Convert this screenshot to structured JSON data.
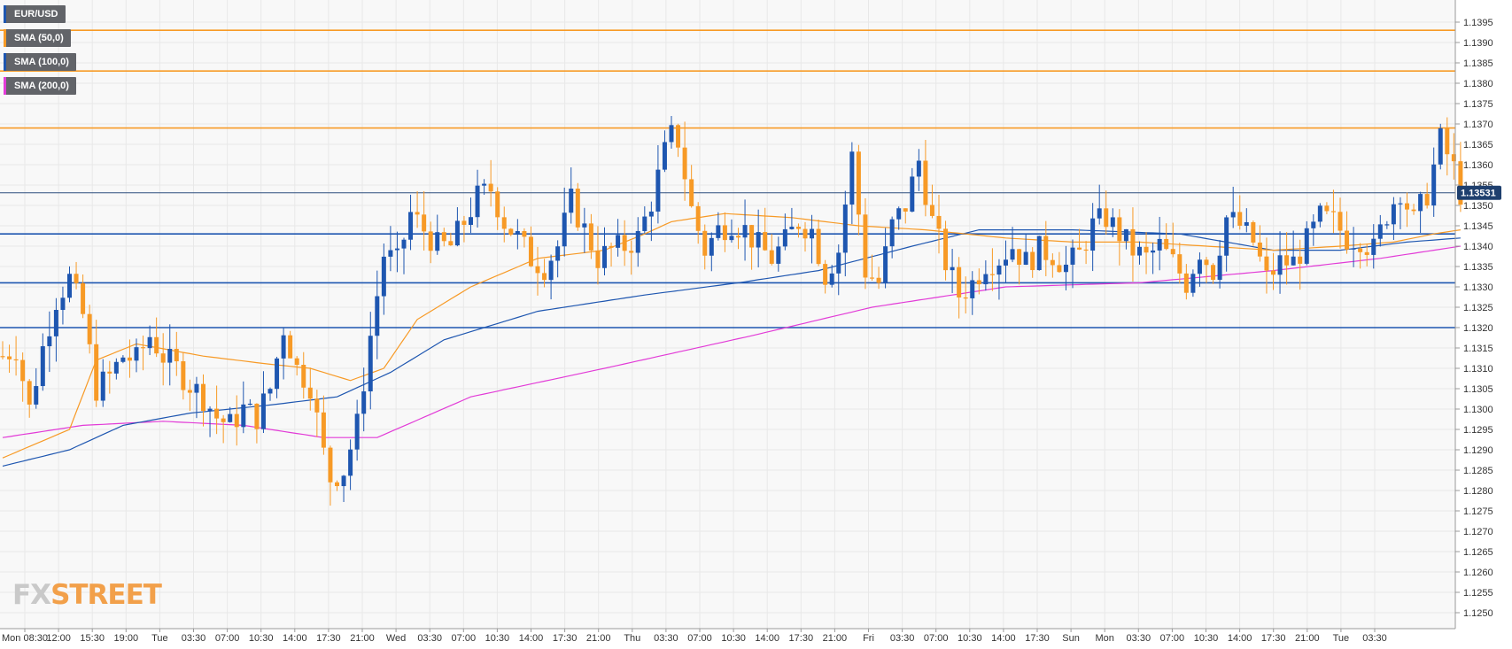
{
  "legend": {
    "instrument": "EUR/USD",
    "sma50": "SMA (50,0)",
    "sma100": "SMA (100,0)",
    "sma200": "SMA (200,0)"
  },
  "logo": {
    "fx": "FX",
    "street": "STREET"
  },
  "colors": {
    "bull": "#1e56b0",
    "bear": "#f79a26",
    "sma50": "#f79a26",
    "sma100": "#1e56b0",
    "sma200": "#e23bd7",
    "resistance": "#f79a26",
    "support": "#1e56b0",
    "price_line": "#2e4e7e",
    "price_badge": "#1e3f6e",
    "grid": "#e8e8e8",
    "plot_bg": "#f8f8f8"
  },
  "chart_data": {
    "type": "candlestick",
    "instrument": "EUR/USD",
    "timeframe_note": "15-minute candles",
    "y_range": [
      1.1247,
      1.14
    ],
    "y_ticks": [
      "1.1250",
      "1.1255",
      "1.1260",
      "1.1265",
      "1.1270",
      "1.1275",
      "1.1280",
      "1.1285",
      "1.1290",
      "1.1295",
      "1.1300",
      "1.1305",
      "1.1310",
      "1.1315",
      "1.1320",
      "1.1325",
      "1.1330",
      "1.1335",
      "1.1340",
      "1.1345",
      "1.1350",
      "1.1355",
      "1.1360",
      "1.1365",
      "1.1370",
      "1.1375",
      "1.1380",
      "1.1385",
      "1.1390",
      "1.1395"
    ],
    "x_tick_labels": [
      "Mon 08:30",
      "12:00",
      "15:30",
      "19:00",
      "Tue",
      "03:30",
      "07:00",
      "10:30",
      "14:00",
      "17:30",
      "21:00",
      "Wed",
      "03:30",
      "07:00",
      "10:30",
      "14:00",
      "17:30",
      "21:00",
      "Thu",
      "03:30",
      "07:00",
      "10:30",
      "14:00",
      "17:30",
      "21:00",
      "Fri",
      "03:30",
      "07:00",
      "10:30",
      "14:00",
      "17:30",
      "Sun",
      "Mon",
      "03:30",
      "07:00",
      "10:30",
      "14:00",
      "17:30",
      "21:00",
      "Tue",
      "03:30"
    ],
    "current_price": "1.13531",
    "horizontal_levels": {
      "resistance": [
        1.1369,
        1.1383,
        1.1393
      ],
      "support": [
        1.132,
        1.1331,
        1.1343
      ]
    },
    "close_path": [
      [
        0,
        1.1313
      ],
      [
        2,
        1.1315
      ],
      [
        4,
        1.13
      ],
      [
        6,
        1.1315
      ],
      [
        8,
        1.1327
      ],
      [
        10,
        1.1332
      ],
      [
        12,
        1.1323
      ],
      [
        14,
        1.1305
      ],
      [
        16,
        1.1308
      ],
      [
        18,
        1.1313
      ],
      [
        20,
        1.1312
      ],
      [
        22,
        1.1318
      ],
      [
        24,
        1.1313
      ],
      [
        26,
        1.131
      ],
      [
        28,
        1.1306
      ],
      [
        30,
        1.1303
      ],
      [
        32,
        1.1298
      ],
      [
        34,
        1.1296
      ],
      [
        36,
        1.13
      ],
      [
        38,
        1.1298
      ],
      [
        40,
        1.1305
      ],
      [
        42,
        1.132
      ],
      [
        44,
        1.131
      ],
      [
        46,
        1.1306
      ],
      [
        48,
        1.1289
      ],
      [
        49,
        1.1283
      ],
      [
        51,
        1.1285
      ],
      [
        53,
        1.1296
      ],
      [
        55,
        1.1318
      ],
      [
        57,
        1.1338
      ],
      [
        59,
        1.1336
      ],
      [
        61,
        1.1348
      ],
      [
        63,
        1.1344
      ],
      [
        65,
        1.134
      ],
      [
        67,
        1.134
      ],
      [
        69,
        1.1346
      ],
      [
        71,
        1.1352
      ],
      [
        73,
        1.1354
      ],
      [
        75,
        1.1346
      ],
      [
        77,
        1.1342
      ],
      [
        79,
        1.1337
      ],
      [
        81,
        1.1335
      ],
      [
        83,
        1.134
      ],
      [
        85,
        1.1351
      ],
      [
        87,
        1.1344
      ],
      [
        89,
        1.1337
      ],
      [
        91,
        1.1339
      ],
      [
        93,
        1.134
      ],
      [
        95,
        1.1342
      ],
      [
        97,
        1.1351
      ],
      [
        99,
        1.1363
      ],
      [
        100,
        1.1367
      ],
      [
        101,
        1.1366
      ],
      [
        103,
        1.1349
      ],
      [
        105,
        1.1339
      ],
      [
        107,
        1.1344
      ],
      [
        109,
        1.1346
      ],
      [
        111,
        1.1344
      ],
      [
        113,
        1.134
      ],
      [
        115,
        1.1337
      ],
      [
        117,
        1.1341
      ],
      [
        119,
        1.1346
      ],
      [
        121,
        1.1344
      ],
      [
        123,
        1.1333
      ],
      [
        125,
        1.1339
      ],
      [
        127,
        1.1362
      ],
      [
        129,
        1.1334
      ],
      [
        131,
        1.1331
      ],
      [
        133,
        1.1345
      ],
      [
        135,
        1.135
      ],
      [
        137,
        1.1361
      ],
      [
        139,
        1.1346
      ],
      [
        141,
        1.1336
      ],
      [
        143,
        1.1328
      ],
      [
        145,
        1.1331
      ],
      [
        147,
        1.1336
      ],
      [
        149,
        1.1337
      ],
      [
        151,
        1.134
      ],
      [
        153,
        1.1336
      ],
      [
        155,
        1.1339
      ],
      [
        157,
        1.1338
      ],
      [
        159,
        1.1335
      ],
      [
        161,
        1.1338
      ],
      [
        163,
        1.1345
      ],
      [
        165,
        1.1347
      ],
      [
        167,
        1.1343
      ],
      [
        169,
        1.1339
      ],
      [
        171,
        1.1337
      ],
      [
        173,
        1.134
      ],
      [
        175,
        1.1336
      ],
      [
        177,
        1.1331
      ],
      [
        179,
        1.1339
      ],
      [
        181,
        1.1334
      ],
      [
        183,
        1.1347
      ],
      [
        185,
        1.1345
      ],
      [
        187,
        1.1341
      ],
      [
        189,
        1.1332
      ],
      [
        191,
        1.1336
      ],
      [
        193,
        1.1336
      ],
      [
        195,
        1.1341
      ],
      [
        197,
        1.1347
      ],
      [
        199,
        1.1346
      ],
      [
        201,
        1.1342
      ],
      [
        203,
        1.1342
      ],
      [
        205,
        1.1339
      ],
      [
        207,
        1.1348
      ],
      [
        209,
        1.1354
      ],
      [
        211,
        1.1346
      ],
      [
        213,
        1.1353
      ],
      [
        215,
        1.1366
      ],
      [
        217,
        1.1359
      ],
      [
        218,
        1.1353
      ]
    ],
    "wick_pct": 0.0005,
    "sma50_path": [
      [
        0,
        1.1288
      ],
      [
        10,
        1.1295
      ],
      [
        14,
        1.1312
      ],
      [
        20,
        1.1316
      ],
      [
        30,
        1.1313
      ],
      [
        40,
        1.1311
      ],
      [
        46,
        1.131
      ],
      [
        52,
        1.1307
      ],
      [
        57,
        1.131
      ],
      [
        62,
        1.1322
      ],
      [
        70,
        1.133
      ],
      [
        80,
        1.1337
      ],
      [
        90,
        1.1339
      ],
      [
        96,
        1.1343
      ],
      [
        100,
        1.1346
      ],
      [
        108,
        1.1348
      ],
      [
        118,
        1.1347
      ],
      [
        128,
        1.1345
      ],
      [
        138,
        1.1344
      ],
      [
        150,
        1.1342
      ],
      [
        160,
        1.1341
      ],
      [
        170,
        1.1341
      ],
      [
        180,
        1.134
      ],
      [
        190,
        1.1339
      ],
      [
        200,
        1.134
      ],
      [
        208,
        1.1341
      ],
      [
        214,
        1.1343
      ],
      [
        218,
        1.1344
      ]
    ],
    "sma100_path": [
      [
        0,
        1.1286
      ],
      [
        10,
        1.129
      ],
      [
        18,
        1.1296
      ],
      [
        28,
        1.1299
      ],
      [
        40,
        1.1301
      ],
      [
        50,
        1.1303
      ],
      [
        58,
        1.1309
      ],
      [
        66,
        1.1317
      ],
      [
        80,
        1.1324
      ],
      [
        96,
        1.1328
      ],
      [
        110,
        1.1331
      ],
      [
        122,
        1.1334
      ],
      [
        136,
        1.134
      ],
      [
        146,
        1.1344
      ],
      [
        160,
        1.1344
      ],
      [
        176,
        1.1343
      ],
      [
        190,
        1.1339
      ],
      [
        200,
        1.1339
      ],
      [
        210,
        1.1341
      ],
      [
        218,
        1.1342
      ]
    ],
    "sma200_path": [
      [
        0,
        1.1293
      ],
      [
        12,
        1.1296
      ],
      [
        24,
        1.1297
      ],
      [
        36,
        1.1296
      ],
      [
        48,
        1.1293
      ],
      [
        56,
        1.1293
      ],
      [
        70,
        1.1303
      ],
      [
        90,
        1.131
      ],
      [
        112,
        1.1318
      ],
      [
        130,
        1.1325
      ],
      [
        150,
        1.133
      ],
      [
        170,
        1.1331
      ],
      [
        190,
        1.1334
      ],
      [
        206,
        1.1337
      ],
      [
        218,
        1.134
      ]
    ]
  }
}
